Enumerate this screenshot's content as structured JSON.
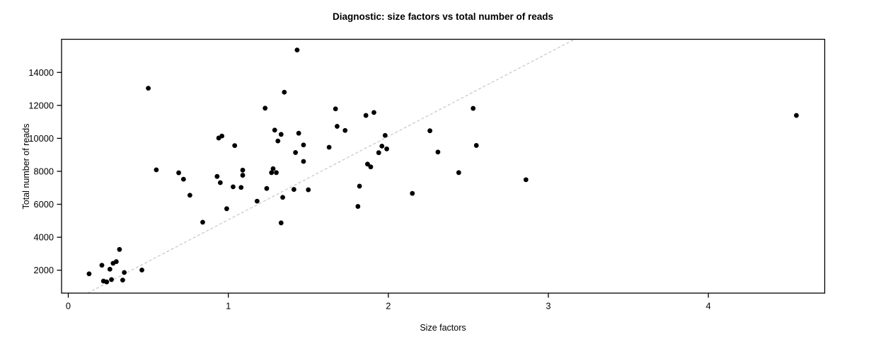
{
  "title": "Diagnostic: size factors vs total number of reads",
  "chart_data": {
    "type": "scatter",
    "title": "Diagnostic: size factors vs total number of reads",
    "xlabel": "Size factors",
    "ylabel": "Total number of reads",
    "x_ticks": [
      0,
      1,
      2,
      3,
      4
    ],
    "y_ticks": [
      2000,
      4000,
      6000,
      8000,
      10000,
      12000,
      14000
    ],
    "xlim": [
      -0.042,
      4.727
    ],
    "ylim": [
      610,
      16010
    ],
    "grid": false,
    "legend": null,
    "point_color": "#000000",
    "point_radius": 3.4,
    "axis_color": "#000000",
    "reference_line": {
      "slope": 5060,
      "intercept": 0,
      "style": "dashed",
      "color": "#c6c6c6"
    },
    "points": [
      [
        0.13,
        1780
      ],
      [
        0.21,
        2300
      ],
      [
        0.22,
        1340
      ],
      [
        0.24,
        1290
      ],
      [
        0.26,
        2060
      ],
      [
        0.27,
        1430
      ],
      [
        0.28,
        2420
      ],
      [
        0.3,
        2520
      ],
      [
        0.32,
        3260
      ],
      [
        0.34,
        1400
      ],
      [
        0.35,
        1860
      ],
      [
        0.46,
        2010
      ],
      [
        0.5,
        13040
      ],
      [
        0.55,
        8090
      ],
      [
        0.69,
        7910
      ],
      [
        0.72,
        7520
      ],
      [
        0.76,
        6550
      ],
      [
        0.84,
        4910
      ],
      [
        0.93,
        7690
      ],
      [
        0.94,
        10020
      ],
      [
        0.95,
        7310
      ],
      [
        0.96,
        10140
      ],
      [
        0.99,
        5730
      ],
      [
        1.03,
        7060
      ],
      [
        1.04,
        9560
      ],
      [
        1.08,
        7020
      ],
      [
        1.09,
        8070
      ],
      [
        1.09,
        7760
      ],
      [
        1.18,
        6190
      ],
      [
        1.23,
        11830
      ],
      [
        1.24,
        6960
      ],
      [
        1.27,
        7920
      ],
      [
        1.28,
        8160
      ],
      [
        1.3,
        7920
      ],
      [
        1.29,
        10500
      ],
      [
        1.31,
        9840
      ],
      [
        1.33,
        10240
      ],
      [
        1.33,
        4870
      ],
      [
        1.34,
        6420
      ],
      [
        1.35,
        12800
      ],
      [
        1.41,
        6900
      ],
      [
        1.43,
        15360
      ],
      [
        1.42,
        9140
      ],
      [
        1.44,
        10310
      ],
      [
        1.47,
        9600
      ],
      [
        1.47,
        8600
      ],
      [
        1.5,
        6880
      ],
      [
        1.63,
        9460
      ],
      [
        1.67,
        11790
      ],
      [
        1.68,
        10730
      ],
      [
        1.73,
        10480
      ],
      [
        1.81,
        5870
      ],
      [
        1.82,
        7100
      ],
      [
        1.86,
        11390
      ],
      [
        1.87,
        8440
      ],
      [
        1.89,
        8270
      ],
      [
        1.91,
        11570
      ],
      [
        1.94,
        9130
      ],
      [
        1.96,
        9530
      ],
      [
        1.98,
        10180
      ],
      [
        1.99,
        9360
      ],
      [
        2.15,
        6660
      ],
      [
        2.26,
        10460
      ],
      [
        2.31,
        9170
      ],
      [
        2.44,
        7920
      ],
      [
        2.53,
        11820
      ],
      [
        2.55,
        9570
      ],
      [
        2.86,
        7490
      ],
      [
        4.55,
        11390
      ]
    ]
  }
}
